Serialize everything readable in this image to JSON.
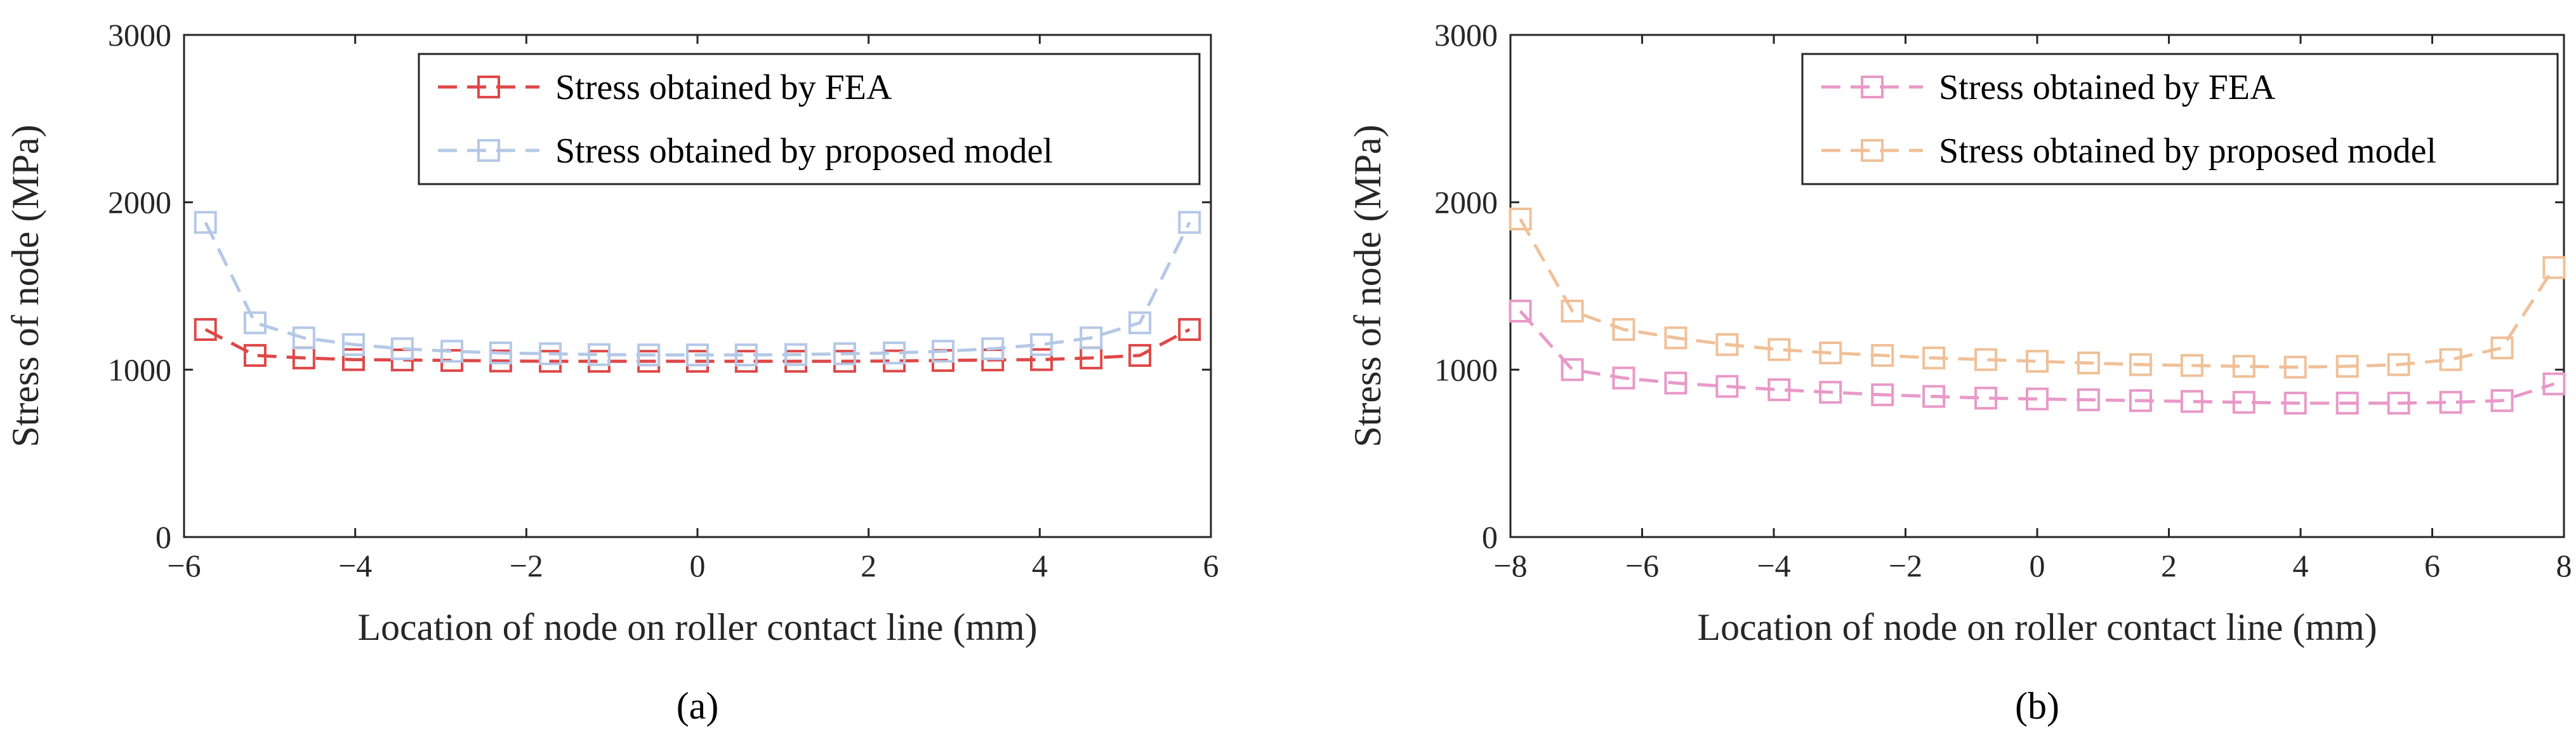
{
  "chart_data": [
    {
      "type": "line",
      "panel_label": "(a)",
      "xlabel": "Location of node on roller contact line (mm)",
      "ylabel": "Stress of node (MPa)",
      "xlim": [
        -6,
        6
      ],
      "ylim": [
        0,
        3000
      ],
      "xticks": [
        -6,
        -4,
        -2,
        0,
        2,
        4,
        6
      ],
      "yticks": [
        0,
        1000,
        2000,
        3000
      ],
      "grid": true,
      "legend_position": "top-right",
      "x": [
        -5.75,
        -5.17,
        -4.6,
        -4.02,
        -3.45,
        -2.87,
        -2.3,
        -1.72,
        -1.15,
        -0.57,
        0,
        0.57,
        1.15,
        1.72,
        2.3,
        2.87,
        3.45,
        4.02,
        4.6,
        5.17,
        5.75
      ],
      "series": [
        {
          "name": "Stress obtained by FEA",
          "color": "#de4848",
          "values": [
            1240,
            1085,
            1070,
            1060,
            1058,
            1055,
            1052,
            1050,
            1050,
            1050,
            1050,
            1050,
            1050,
            1050,
            1052,
            1055,
            1058,
            1060,
            1070,
            1085,
            1240
          ]
        },
        {
          "name": "Stress obtained by proposed model",
          "color": "#b4c8e6",
          "values": [
            1880,
            1280,
            1190,
            1150,
            1125,
            1110,
            1100,
            1095,
            1090,
            1088,
            1088,
            1088,
            1090,
            1095,
            1100,
            1110,
            1125,
            1150,
            1190,
            1280,
            1880
          ]
        }
      ]
    },
    {
      "type": "line",
      "panel_label": "(b)",
      "xlabel": "Location of node on roller contact line (mm)",
      "ylabel": "Stress of node (MPa)",
      "xlim": [
        -8,
        8
      ],
      "ylim": [
        0,
        3000
      ],
      "xticks": [
        -8,
        -6,
        -4,
        -2,
        0,
        2,
        4,
        6,
        8
      ],
      "yticks": [
        0,
        1000,
        2000,
        3000
      ],
      "grid": true,
      "legend_position": "top-right",
      "x": [
        -7.85,
        -7.06,
        -6.28,
        -5.49,
        -4.71,
        -3.92,
        -3.14,
        -2.35,
        -1.57,
        -0.78,
        0,
        0.78,
        1.57,
        2.35,
        3.14,
        3.92,
        4.71,
        5.49,
        6.28,
        7.06,
        7.85
      ],
      "series": [
        {
          "name": "Stress obtained by FEA",
          "color": "#e899c8",
          "values": [
            1350,
            1000,
            950,
            920,
            900,
            880,
            865,
            850,
            840,
            830,
            825,
            820,
            815,
            810,
            805,
            800,
            800,
            800,
            805,
            815,
            915
          ]
        },
        {
          "name": "Stress obtained by proposed model",
          "color": "#f0c098",
          "values": [
            1900,
            1350,
            1240,
            1190,
            1150,
            1120,
            1100,
            1085,
            1070,
            1060,
            1050,
            1040,
            1030,
            1025,
            1020,
            1015,
            1020,
            1030,
            1060,
            1130,
            1610
          ]
        }
      ]
    }
  ]
}
